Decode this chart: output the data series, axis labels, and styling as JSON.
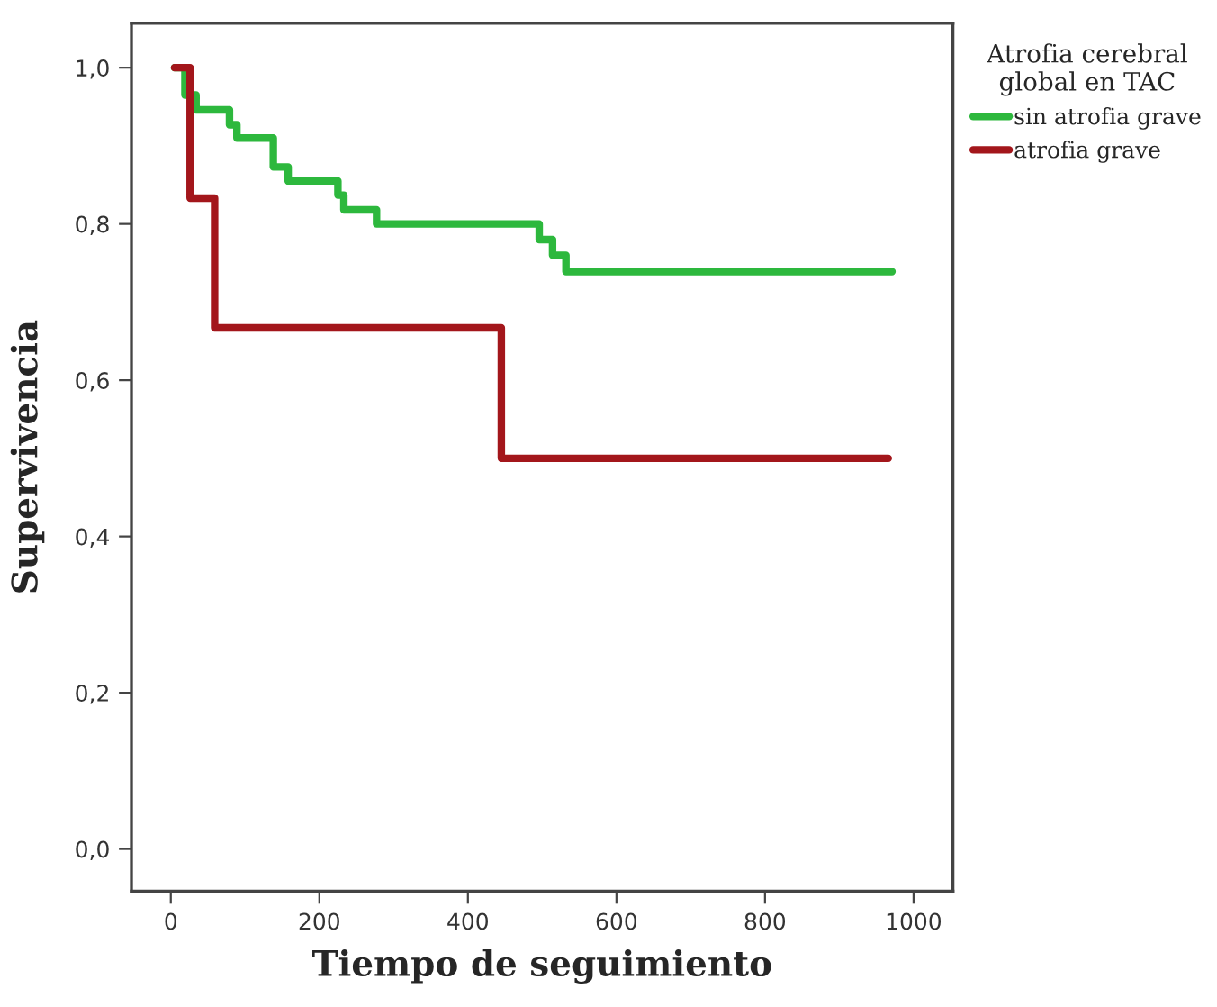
{
  "chart_data": {
    "type": "step",
    "xlabel": "Tiempo de seguimiento",
    "ylabel": "Supervivencia",
    "legend_title": "Atrofia cerebral\nglobal en TAC",
    "legend": "right",
    "grid": false,
    "xlim": [
      -53,
      1053
    ],
    "ylim": [
      -0.054,
      1.057
    ],
    "xticks": [
      0,
      200,
      400,
      600,
      800,
      1000
    ],
    "yticks": [
      {
        "value": 0,
        "label": "0,0"
      },
      {
        "value": 0.2,
        "label": "0,2"
      },
      {
        "value": 0.4,
        "label": "0,4"
      },
      {
        "value": 0.6,
        "label": "0,6"
      },
      {
        "value": 0.8,
        "label": "0,8"
      },
      {
        "value": 1.0,
        "label": "1,0"
      }
    ],
    "series": [
      {
        "name": "sin atrofia grave",
        "color": "#2db83d",
        "x": [
          5,
          19,
          34,
          79,
          89,
          138,
          158,
          225,
          233,
          277,
          496,
          514,
          532,
          971
        ],
        "values": [
          1.0,
          0.965,
          0.946,
          0.927,
          0.91,
          0.873,
          0.855,
          0.837,
          0.818,
          0.8,
          0.78,
          0.76,
          0.739,
          0.739
        ]
      },
      {
        "name": "atrofia grave",
        "color": "#a3161b",
        "x": [
          5,
          26,
          59,
          445,
          966
        ],
        "values": [
          1.0,
          0.833,
          0.667,
          0.5,
          0.5
        ]
      }
    ]
  }
}
